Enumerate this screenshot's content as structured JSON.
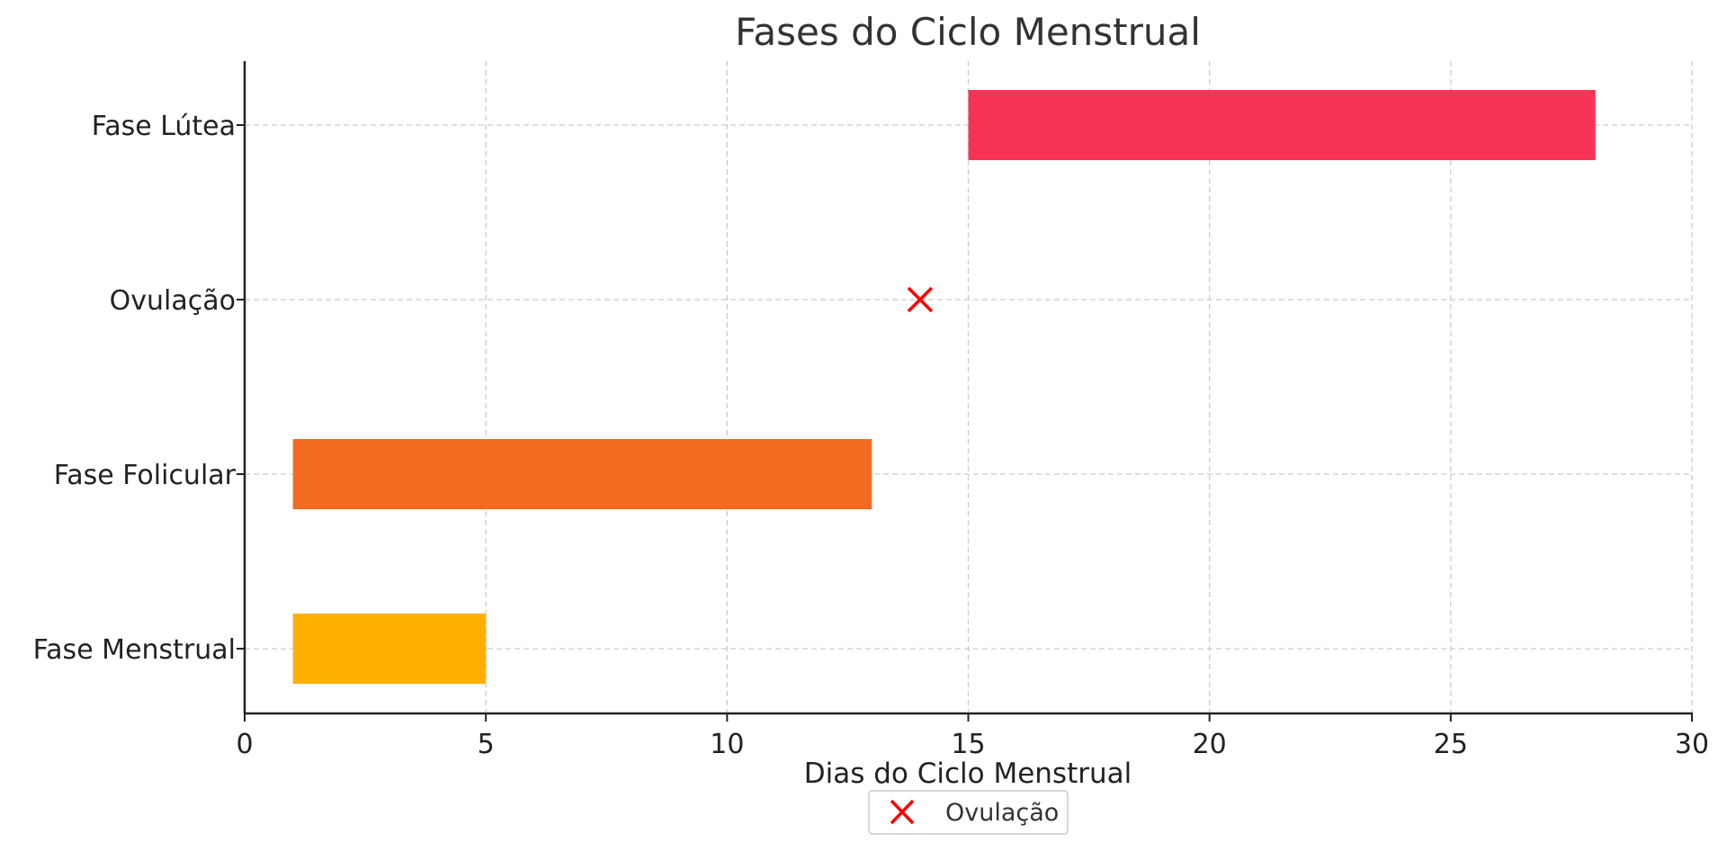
{
  "chart_data": {
    "type": "bar",
    "orientation": "horizontal",
    "title": "Fases do Ciclo Menstrual",
    "xlabel": "Dias do Ciclo Menstrual",
    "ylabel": "",
    "xlim": [
      0,
      30
    ],
    "xticks": [
      0,
      5,
      10,
      15,
      20,
      25,
      30
    ],
    "xtick_labels": [
      "0",
      "5",
      "10",
      "15",
      "20",
      "25",
      "30"
    ],
    "grid": true,
    "categories": [
      "Fase Menstrual",
      "Fase Folicular",
      "Ovulação",
      "Fase Lútea"
    ],
    "bars": [
      {
        "category": "Fase Menstrual",
        "start": 1,
        "end": 5,
        "color": "#FFB000"
      },
      {
        "category": "Fase Folicular",
        "start": 1,
        "end": 13,
        "color": "#F46A21"
      },
      {
        "category": "Fase Lútea",
        "start": 15,
        "end": 28,
        "color": "#F83358"
      }
    ],
    "markers": [
      {
        "category": "Ovulação",
        "x": 14,
        "symbol": "x",
        "color": "#FF0000",
        "label": "Ovulação"
      }
    ],
    "legend": {
      "position": "bottom-center",
      "entries": [
        {
          "label": "Ovulação",
          "symbol": "x",
          "color": "#FF0000"
        }
      ]
    }
  }
}
